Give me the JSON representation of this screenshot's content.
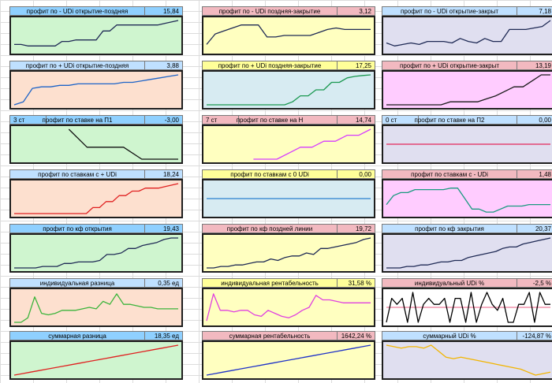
{
  "colors": {
    "header_blue": "#8fd0ff",
    "header_light_blue": "#bfe0ff",
    "header_pink": "#f2b9c0",
    "header_yellow": "#ffff99",
    "bg_green": "#cff5cf",
    "bg_yellow": "#ffffc0",
    "bg_lavender": "#e0dff0",
    "bg_peach": "#fde0cf",
    "bg_lightblue": "#d7ebf2",
    "bg_pink": "#ffccff"
  },
  "panels": [
    {
      "title": "профит по - UDi открытие-поздняя",
      "value": "15,84",
      "prefix": "",
      "hdr": "#8fd0ff",
      "bg": "#cff5cf",
      "color": "#1f2a55",
      "chart_data": {
        "type": "line",
        "ylim": [
          0,
          10
        ],
        "values": [
          2,
          2,
          1.5,
          1.5,
          1.5,
          1.5,
          1.5,
          3,
          3,
          3.5,
          3.5,
          3.5,
          3.5,
          6.5,
          6.5,
          8.5,
          8.5,
          8.5,
          8.5,
          8.5,
          8.5,
          8.5,
          9,
          9.5,
          10
        ]
      }
    },
    {
      "title": "профит по - UDi поздняя-закрытие",
      "value": "3,12",
      "prefix": "",
      "hdr": "#f2b9c0",
      "bg": "#ffffc0",
      "color": "#1f2a55",
      "chart_data": {
        "type": "line",
        "ylim": [
          0,
          10
        ],
        "values": [
          2,
          5.5,
          6.5,
          7.5,
          8.5,
          8.5,
          8.5,
          4.5,
          4.5,
          5,
          5,
          5,
          5,
          6,
          7,
          7.5,
          7,
          7,
          7,
          7
        ]
      }
    },
    {
      "title": "профит по - UDi открытие-закрыт",
      "value": "7,18",
      "prefix": "",
      "hdr": "#bfe0ff",
      "bg": "#e0dff0",
      "color": "#1f2a55",
      "chart_data": {
        "type": "line",
        "ylim": [
          0,
          10
        ],
        "values": [
          2.5,
          1.5,
          2,
          2.5,
          2,
          3,
          3,
          3,
          2.5,
          4,
          3,
          2.5,
          4,
          3,
          3,
          7,
          7,
          7,
          7.5,
          8,
          10
        ]
      }
    },
    {
      "title": "профит по + UDi открытие-поздняя",
      "value": "3,88",
      "prefix": "",
      "hdr": "#bfe0ff",
      "bg": "#fde0cf",
      "color": "#1e64c8",
      "chart_data": {
        "type": "line",
        "ylim": [
          0,
          10
        ],
        "values": [
          0,
          1,
          5.5,
          6,
          6,
          6.5,
          6.5,
          7,
          7,
          7,
          7,
          7,
          7.5,
          7.5,
          8,
          8.5,
          9,
          9.5,
          10
        ]
      }
    },
    {
      "title": "профит по + UDi поздняя-закрытие",
      "value": "17,25",
      "prefix": "",
      "hdr": "#ffff99",
      "bg": "#d7ebf2",
      "color": "#1a9850",
      "chart_data": {
        "type": "line",
        "ylim": [
          0,
          10
        ],
        "values": [
          0,
          0,
          0,
          0,
          0,
          0,
          0,
          0,
          0,
          0,
          0,
          1,
          3,
          3,
          5,
          5,
          7.5,
          7.5,
          9,
          9.5,
          9.8,
          10
        ]
      }
    },
    {
      "title": "профит по + UDi открытие-закрыт",
      "value": "13,19",
      "prefix": "",
      "hdr": "#f2b9c0",
      "bg": "#ffccff",
      "color": "#1a1a1a",
      "chart_data": {
        "type": "line",
        "ylim": [
          0,
          10
        ],
        "values": [
          0,
          0,
          0,
          0,
          0,
          0,
          0,
          1,
          1,
          1,
          1,
          2,
          3,
          4.5,
          6,
          6,
          8,
          10,
          10
        ]
      }
    },
    {
      "title": "профит по ставке на П1",
      "value": "-3,00",
      "prefix": "3 ст",
      "hdr": "#8fd0ff",
      "bg": "#cff5cf",
      "color": "#111111",
      "chart_data": {
        "type": "line",
        "ylim": [
          0,
          10
        ],
        "values": [
          null,
          null,
          null,
          10,
          4,
          4,
          4,
          0,
          0,
          0
        ]
      }
    },
    {
      "title": "профит по ставке на Н",
      "value": "14,74",
      "prefix": "7 ст",
      "hdr": "#f2b9c0",
      "bg": "#ffffc0",
      "color": "#d63aff",
      "chart_data": {
        "type": "line",
        "ylim": [
          0,
          10
        ],
        "values": [
          null,
          null,
          null,
          null,
          0,
          0,
          0,
          2,
          4,
          4,
          6,
          6,
          8,
          8,
          10
        ]
      }
    },
    {
      "title": "профит по ставке на П2",
      "value": "0,00",
      "prefix": "0 ст",
      "hdr": "#bfe0ff",
      "bg": "#e0dff0",
      "color": "#e3265a",
      "chart_data": {
        "type": "line",
        "ylim": [
          0,
          10
        ],
        "values": [
          5,
          5,
          5,
          5,
          5,
          5
        ]
      }
    },
    {
      "title": "профит по ставкам с + UDi",
      "value": "18,24",
      "prefix": "",
      "hdr": "#bfe0ff",
      "bg": "#fde0cf",
      "color": "#e02020",
      "chart_data": {
        "type": "line",
        "ylim": [
          0,
          10
        ],
        "values": [
          0,
          0,
          0,
          0,
          0,
          0,
          0,
          0,
          0,
          0,
          0,
          0,
          2,
          2,
          4,
          4,
          6,
          6,
          7.5,
          7.5,
          8.5,
          8.5,
          8.5,
          9,
          9.5,
          10
        ]
      }
    },
    {
      "title": "профит по ставкам с 0 UDi",
      "value": "0,00",
      "prefix": "",
      "hdr": "#ffff99",
      "bg": "#d7ebf2",
      "color": "#2a7fd0",
      "chart_data": {
        "type": "line",
        "ylim": [
          0,
          10
        ],
        "values": [
          5,
          5,
          5,
          5,
          5,
          5
        ]
      }
    },
    {
      "title": "профит по ставкам с - UDi",
      "value": "1,48",
      "prefix": "",
      "hdr": "#f2b9c0",
      "bg": "#ffccff",
      "color": "#1a9a80",
      "chart_data": {
        "type": "line",
        "ylim": [
          0,
          10
        ],
        "values": [
          3,
          6,
          7,
          7,
          8,
          8,
          8,
          8,
          8,
          8.5,
          8.5,
          5,
          1.5,
          1.5,
          0.5,
          0.5,
          1.5,
          2.5,
          2.5,
          2.5,
          3,
          3,
          3,
          3
        ]
      }
    },
    {
      "title": "профит по кф открытия",
      "value": "19,43",
      "prefix": "",
      "hdr": "#8fd0ff",
      "bg": "#cff5cf",
      "color": "#1f2a55",
      "chart_data": {
        "type": "line",
        "ylim": [
          0,
          10
        ],
        "values": [
          0,
          0,
          0,
          0,
          0.5,
          0.5,
          0.5,
          1.5,
          1.5,
          2,
          2,
          2,
          2.5,
          4.5,
          4.5,
          5,
          6.5,
          6.5,
          7.5,
          8,
          8.5,
          9.5,
          10,
          10
        ]
      }
    },
    {
      "title": "профит по кф поздней линии",
      "value": "19,72",
      "prefix": "",
      "hdr": "#f2b9c0",
      "bg": "#ffffc0",
      "color": "#1f2a55",
      "chart_data": {
        "type": "line",
        "ylim": [
          0,
          10
        ],
        "values": [
          0,
          0,
          0.5,
          0.5,
          1,
          1,
          1.5,
          2,
          2,
          3,
          2.5,
          3.5,
          4,
          4,
          5,
          4.5,
          6.5,
          6.5,
          7,
          7.5,
          8,
          8.5,
          9.5,
          10
        ]
      }
    },
    {
      "title": "профит по кф закрытия",
      "value": "20,37",
      "prefix": "",
      "hdr": "#bfe0ff",
      "bg": "#e0dff0",
      "color": "#1f2a55",
      "chart_data": {
        "type": "line",
        "ylim": [
          0,
          10
        ],
        "values": [
          0,
          0,
          0,
          0.5,
          0.5,
          1,
          1,
          1.5,
          2,
          2,
          2.5,
          2.5,
          3.5,
          4,
          4.5,
          5,
          5.5,
          6.5,
          7,
          7,
          8,
          8.5,
          9,
          9.5,
          10
        ]
      }
    },
    {
      "title": "индивидуальная разница",
      "value": "0,35 ед",
      "prefix": "",
      "hdr": "#bfe0ff",
      "bg": "#fde0cf",
      "color": "#3cb43c",
      "chart_data": {
        "type": "line",
        "ylim": [
          0,
          10
        ],
        "values": [
          0,
          0,
          1.5,
          8.5,
          3,
          2.5,
          3,
          4,
          4,
          4,
          4.5,
          5,
          4.5,
          7,
          6,
          9.5,
          6,
          6,
          5.5,
          5,
          5,
          4.5,
          4.5,
          4.5,
          4.5
        ]
      }
    },
    {
      "title": "индивидуальная рентабельность",
      "value": "31,58 %",
      "prefix": "",
      "hdr": "#ffff99",
      "bg": "#ffffc0",
      "color": "#e040e0",
      "chart_data": {
        "type": "line",
        "ylim": [
          0,
          10
        ],
        "values": [
          0.5,
          9.5,
          4,
          4,
          3.5,
          4,
          4,
          2.5,
          2,
          4,
          3,
          2,
          1.5,
          2.5,
          4,
          5,
          9,
          7.5,
          7.5,
          7,
          6.5,
          6.5,
          6.5,
          6.5,
          6.5
        ]
      }
    },
    {
      "title": "индивидуальный UDi %",
      "value": "-2,5 %",
      "prefix": "",
      "hdr": "#f2b9c0",
      "bg": "#ffffff",
      "color": "#000000",
      "chart_data": {
        "type": "line",
        "ylim": [
          0,
          10
        ],
        "values": [
          0,
          8,
          6,
          8,
          0,
          10,
          0,
          6,
          8,
          6,
          6,
          8,
          0,
          8,
          8,
          0,
          10,
          0,
          6,
          10,
          6,
          4,
          8,
          0,
          0,
          6,
          6,
          10,
          0,
          10,
          6,
          6
        ]
      }
    },
    {
      "title": "суммарная разница",
      "value": "18,35 ед",
      "prefix": "",
      "hdr": "#8fd0ff",
      "bg": "#cff5cf",
      "color": "#e02020",
      "chart_data": {
        "type": "line",
        "ylim": [
          0,
          10
        ],
        "values": [
          0,
          0.5,
          1,
          1.5,
          2,
          2.5,
          3,
          3.5,
          4,
          4.5,
          5,
          5.5,
          6,
          6.5,
          7,
          7.5,
          8,
          8.5,
          9,
          9.5,
          10
        ]
      }
    },
    {
      "title": "суммарная рентабельность",
      "value": "1642,24 %",
      "prefix": "",
      "hdr": "#f2b9c0",
      "bg": "#ffffc0",
      "color": "#1e32c8",
      "chart_data": {
        "type": "line",
        "ylim": [
          0,
          10
        ],
        "values": [
          0,
          0.5,
          1,
          1.5,
          2,
          2.5,
          3,
          3.5,
          4,
          4.5,
          5,
          5.5,
          6,
          6.5,
          7,
          7.5,
          8,
          8.5,
          9,
          9.5,
          10
        ]
      }
    },
    {
      "title": "суммарный UDi %",
      "value": "-124,87 %",
      "prefix": "",
      "hdr": "#bfe0ff",
      "bg": "#e0dff0",
      "color": "#f2b500",
      "chart_data": {
        "type": "line",
        "ylim": [
          0,
          10
        ],
        "values": [
          10,
          9.5,
          9,
          9.5,
          9.5,
          9,
          10,
          8,
          6,
          5.5,
          6,
          5.5,
          5,
          4.5,
          4,
          3.5,
          3,
          2.5,
          2,
          1,
          0,
          0.5,
          1
        ]
      }
    }
  ]
}
